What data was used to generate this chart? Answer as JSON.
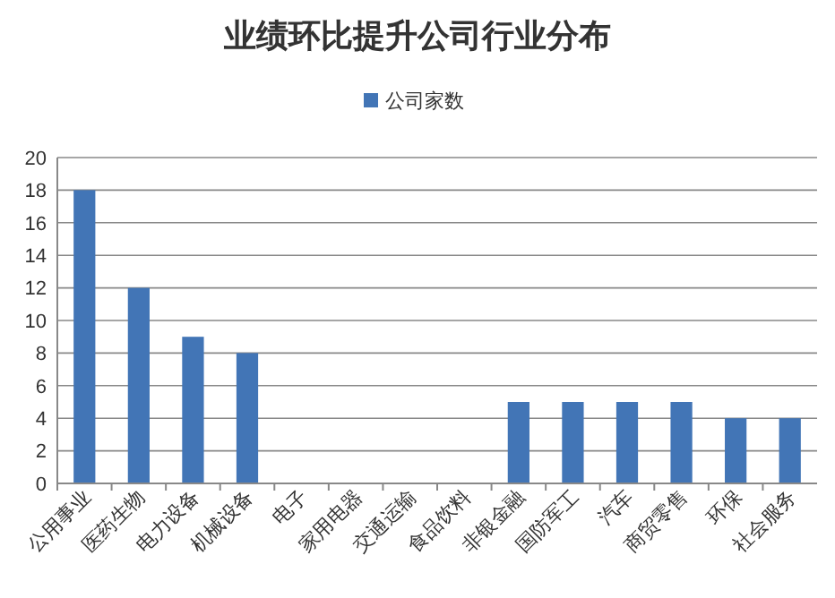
{
  "chart_data": {
    "type": "bar",
    "title": "业绩环比提升公司行业分布",
    "categories": [
      "公用事业",
      "医药生物",
      "电力设备",
      "机械设备",
      "电子",
      "家用电器",
      "交通运输",
      "食品饮料",
      "非银金融",
      "国防军工",
      "汽车",
      "商贸零售",
      "环保",
      "社会服务"
    ],
    "series": [
      {
        "name": "公司家数",
        "color": "#4275b6",
        "values": [
          18,
          12,
          9,
          8,
          null,
          null,
          null,
          null,
          5,
          5,
          5,
          5,
          4,
          4
        ]
      }
    ],
    "ylim": [
      0,
      20
    ],
    "yticks": [
      0,
      2,
      4,
      6,
      8,
      10,
      12,
      14,
      16,
      18,
      20
    ],
    "grid": "y",
    "legend": "top"
  }
}
